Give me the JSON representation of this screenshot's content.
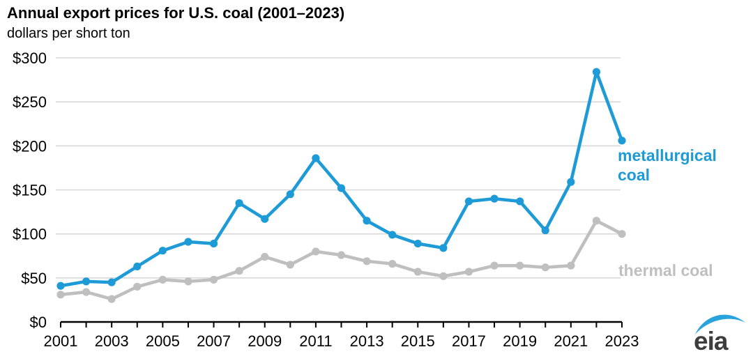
{
  "chart_data": {
    "type": "line",
    "title": "Annual export prices for U.S. coal (2001–2023)",
    "subtitle": "dollars per short ton",
    "ylabel": "dollars per short ton",
    "xlabel": "",
    "x": [
      2001,
      2002,
      2003,
      2004,
      2005,
      2006,
      2007,
      2008,
      2009,
      2010,
      2011,
      2012,
      2013,
      2014,
      2015,
      2016,
      2017,
      2018,
      2019,
      2020,
      2021,
      2022,
      2023
    ],
    "x_tick_labels": [
      "2001",
      "2003",
      "2005",
      "2007",
      "2009",
      "2011",
      "2013",
      "2015",
      "2017",
      "2019",
      "2021",
      "2023"
    ],
    "y_ticks": [
      0,
      50,
      100,
      150,
      200,
      250,
      300
    ],
    "y_tick_prefix": "$",
    "ylim": [
      0,
      300
    ],
    "grid": true,
    "legend_position": "right-of-line",
    "series": [
      {
        "name": "metallurgical coal",
        "label_lines": [
          "metallurgical",
          "coal"
        ],
        "color": "#1e9bd7",
        "values": [
          41,
          46,
          45,
          63,
          81,
          91,
          89,
          135,
          117,
          145,
          186,
          152,
          115,
          99,
          89,
          84,
          137,
          140,
          137,
          104,
          159,
          284,
          206
        ]
      },
      {
        "name": "thermal coal",
        "label_lines": [
          "thermal coal"
        ],
        "color": "#bfbfbf",
        "values": [
          31,
          34,
          26,
          40,
          48,
          46,
          48,
          58,
          74,
          65,
          80,
          76,
          69,
          66,
          57,
          52,
          57,
          64,
          64,
          62,
          64,
          115,
          100
        ]
      }
    ],
    "colors": {
      "grid": "#d8d8d8",
      "axis": "#000000",
      "title": "#000000",
      "accent_blue": "#1e9bd7",
      "neutral_gray": "#bfbfbf"
    }
  },
  "logo": {
    "text": "eia",
    "swoosh_color": "#29a3dc",
    "text_color": "#3d3d3d"
  }
}
